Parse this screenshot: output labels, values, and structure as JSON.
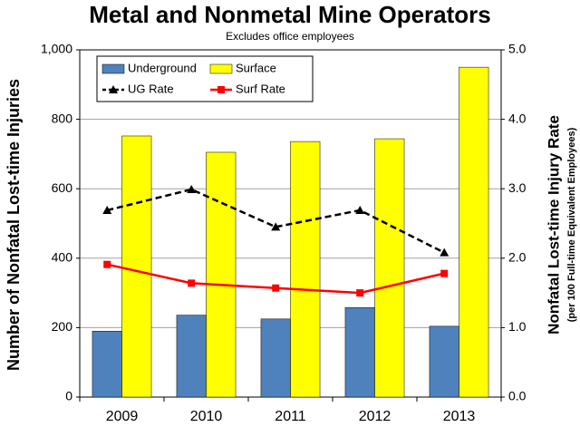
{
  "chart_data": {
    "type": "bar-line",
    "title": "Metal and Nonmetal Mine Operators",
    "subtitle": "Excludes office employees",
    "y_label": "Number of Nonfatal Lost-time Injuries",
    "y2_label": "Nonfatal Lost-time Injury Rate",
    "y2_sublabel": "(per 100 Full-time Equivalent Employees)",
    "categories": [
      "2009",
      "2010",
      "2011",
      "2012",
      "2013"
    ],
    "series": [
      {
        "name": "Underground",
        "type": "bar",
        "color": "#4f81bd",
        "values": [
          190,
          236,
          225,
          258,
          204
        ]
      },
      {
        "name": "Surface",
        "type": "bar",
        "color": "#ffff00",
        "values": [
          752,
          705,
          736,
          744,
          950
        ]
      },
      {
        "name": "UG Rate",
        "type": "line",
        "axis": "y2",
        "color": "#000000",
        "line_style": "dashed",
        "marker": "triangle",
        "values": [
          2.69,
          2.99,
          2.45,
          2.69,
          2.08
        ]
      },
      {
        "name": "Surf Rate",
        "type": "line",
        "axis": "y2",
        "color": "#ff0000",
        "line_style": "solid",
        "marker": "square",
        "values": [
          1.91,
          1.64,
          1.57,
          1.5,
          1.78
        ]
      }
    ],
    "ylim": [
      0,
      1000
    ],
    "yticks": [
      0,
      200,
      400,
      600,
      800,
      {
        "value": 1000,
        "label": "1,000"
      }
    ],
    "y2lim": [
      0,
      5
    ],
    "y2ticks": [
      {
        "value": 0,
        "label": "0.0"
      },
      {
        "value": 1,
        "label": "1.0"
      },
      {
        "value": 2,
        "label": "2.0"
      },
      {
        "value": 3,
        "label": "3.0"
      },
      {
        "value": 4,
        "label": "4.0"
      },
      {
        "value": 5,
        "label": "5.0"
      }
    ],
    "grid": true,
    "legend": "top-left"
  }
}
